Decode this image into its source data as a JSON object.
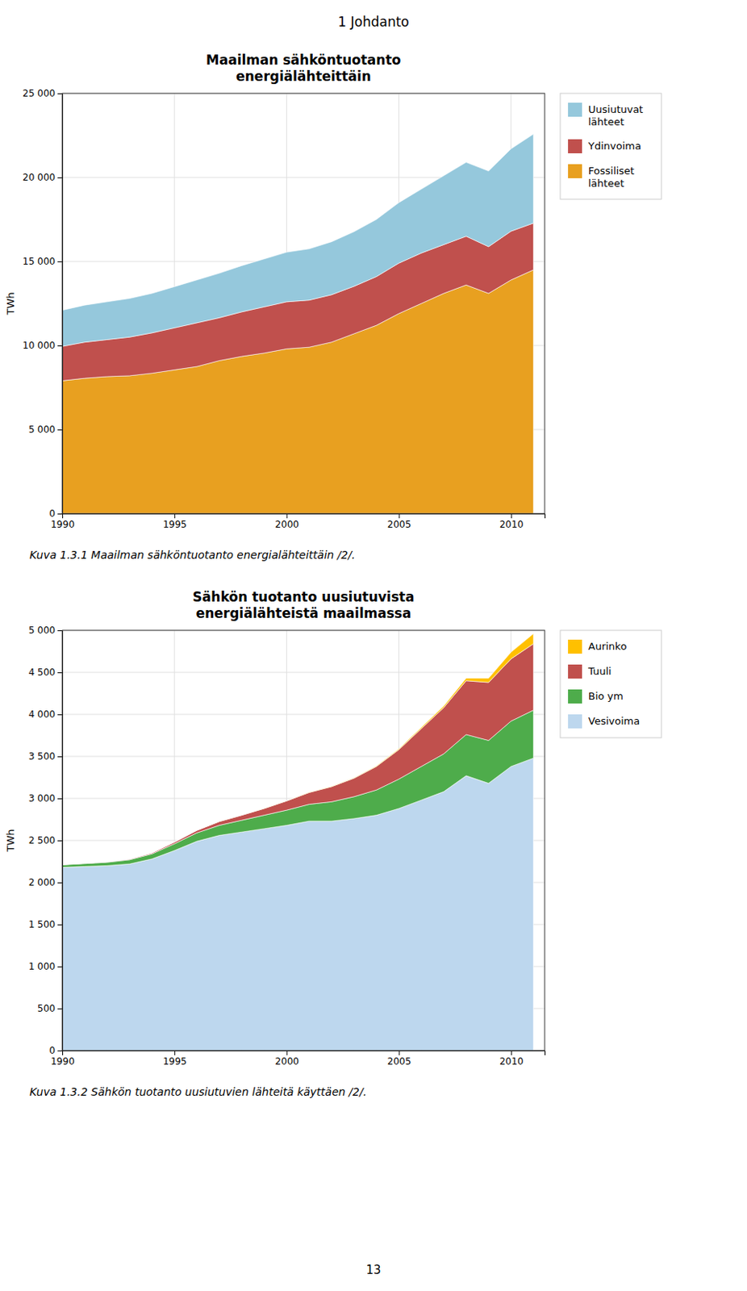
{
  "title": "1 Johdanto",
  "annotations": [
    "13"
  ],
  "chart_data": [
    {
      "type": "area",
      "stacked": true,
      "grid": true,
      "legend": "right",
      "title": "Maailman sähköntuotanto\nenergiälähteittäin",
      "y_label": "TWh",
      "annotations": [
        "Kuva 1.3.1 Maailman sähköntuotanto energialähteittäin /2/."
      ],
      "xlim": [
        1990,
        2011.5
      ],
      "ylim": [
        0,
        25000
      ],
      "xticks": [
        1990,
        1995,
        2000,
        2005,
        2010
      ],
      "yticks": [
        0,
        {
          "value": 5000,
          "label": "5 000"
        },
        {
          "value": 10000,
          "label": "10 000"
        },
        {
          "value": 15000,
          "label": "15 000"
        },
        {
          "value": 20000,
          "label": "20 000"
        },
        {
          "value": 25000,
          "label": "25 000"
        }
      ],
      "x": [
        1990,
        1991,
        1992,
        1993,
        1994,
        1995,
        1996,
        1997,
        1998,
        1999,
        2000,
        2001,
        2002,
        2003,
        2004,
        2005,
        2006,
        2007,
        2008,
        2009,
        2010,
        2011
      ],
      "series": [
        {
          "name": "Fossiliset\nlähteet",
          "color": "#E8A020",
          "values": [
            7900,
            8050,
            8150,
            8200,
            8350,
            8550,
            8750,
            9100,
            9350,
            9550,
            9800,
            9900,
            10200,
            10700,
            11200,
            11900,
            12500,
            13100,
            13600,
            13100,
            13900,
            14500
          ]
        },
        {
          "name": "Ydinvoima",
          "color": "#C0504D",
          "values": [
            2050,
            2150,
            2200,
            2300,
            2400,
            2500,
            2600,
            2550,
            2650,
            2750,
            2800,
            2800,
            2820,
            2820,
            2900,
            3000,
            3000,
            2900,
            2900,
            2780,
            2900,
            2780
          ]
        },
        {
          "name": "Uusiutuvat\nlähteet",
          "color": "#95C8DC",
          "values": [
            2150,
            2200,
            2250,
            2300,
            2350,
            2450,
            2550,
            2650,
            2750,
            2850,
            2950,
            3050,
            3150,
            3250,
            3400,
            3600,
            3800,
            4100,
            4400,
            4500,
            4900,
            5300
          ]
        }
      ]
    },
    {
      "type": "area",
      "stacked": true,
      "grid": true,
      "legend": "right",
      "title": "Sähkön tuotanto uusiutuvista\nenergiälähteistä maailmassa",
      "y_label": "TWh",
      "annotations": [
        "Kuva 1.3.2 Sähkön tuotanto uusiutuvien lähteitä käyttäen /2/."
      ],
      "xlim": [
        1990,
        2011.5
      ],
      "ylim": [
        0,
        5000
      ],
      "xticks": [
        1990,
        1995,
        2000,
        2005,
        2010
      ],
      "yticks": [
        0,
        500,
        {
          "value": 1000,
          "label": "1 000"
        },
        {
          "value": 1500,
          "label": "1 500"
        },
        {
          "value": 2000,
          "label": "2 000"
        },
        {
          "value": 2500,
          "label": "2 500"
        },
        {
          "value": 3000,
          "label": "3 000"
        },
        {
          "value": 3500,
          "label": "3 500"
        },
        {
          "value": 4000,
          "label": "4 000"
        },
        {
          "value": 4500,
          "label": "4 500"
        },
        {
          "value": 5000,
          "label": "5 000"
        }
      ],
      "x": [
        1990,
        1991,
        1992,
        1993,
        1994,
        1995,
        1996,
        1997,
        1998,
        1999,
        2000,
        2001,
        2002,
        2003,
        2004,
        2005,
        2006,
        2007,
        2008,
        2009,
        2010,
        2011
      ],
      "series": [
        {
          "name": "Vesivoima",
          "color": "#BDD7EE",
          "values": [
            2180,
            2190,
            2200,
            2220,
            2280,
            2380,
            2490,
            2560,
            2600,
            2640,
            2680,
            2730,
            2730,
            2760,
            2800,
            2880,
            2980,
            3080,
            3270,
            3180,
            3380,
            3480
          ]
        },
        {
          "name": "Bio ym",
          "color": "#4EAC4B",
          "values": [
            30,
            35,
            40,
            50,
            60,
            80,
            100,
            120,
            140,
            160,
            180,
            200,
            230,
            260,
            300,
            350,
            400,
            450,
            490,
            510,
            540,
            570
          ]
        },
        {
          "name": "Tuuli",
          "color": "#C0504D",
          "values": [
            2,
            3,
            5,
            8,
            12,
            20,
            30,
            45,
            60,
            80,
            110,
            140,
            180,
            220,
            280,
            350,
            450,
            550,
            640,
            690,
            740,
            790
          ]
        },
        {
          "name": "Aurinko",
          "color": "#FFC000",
          "values": [
            0,
            0,
            0,
            0,
            0,
            0,
            0,
            1,
            1,
            2,
            2,
            3,
            4,
            5,
            7,
            10,
            15,
            20,
            30,
            50,
            80,
            120
          ]
        }
      ]
    }
  ]
}
